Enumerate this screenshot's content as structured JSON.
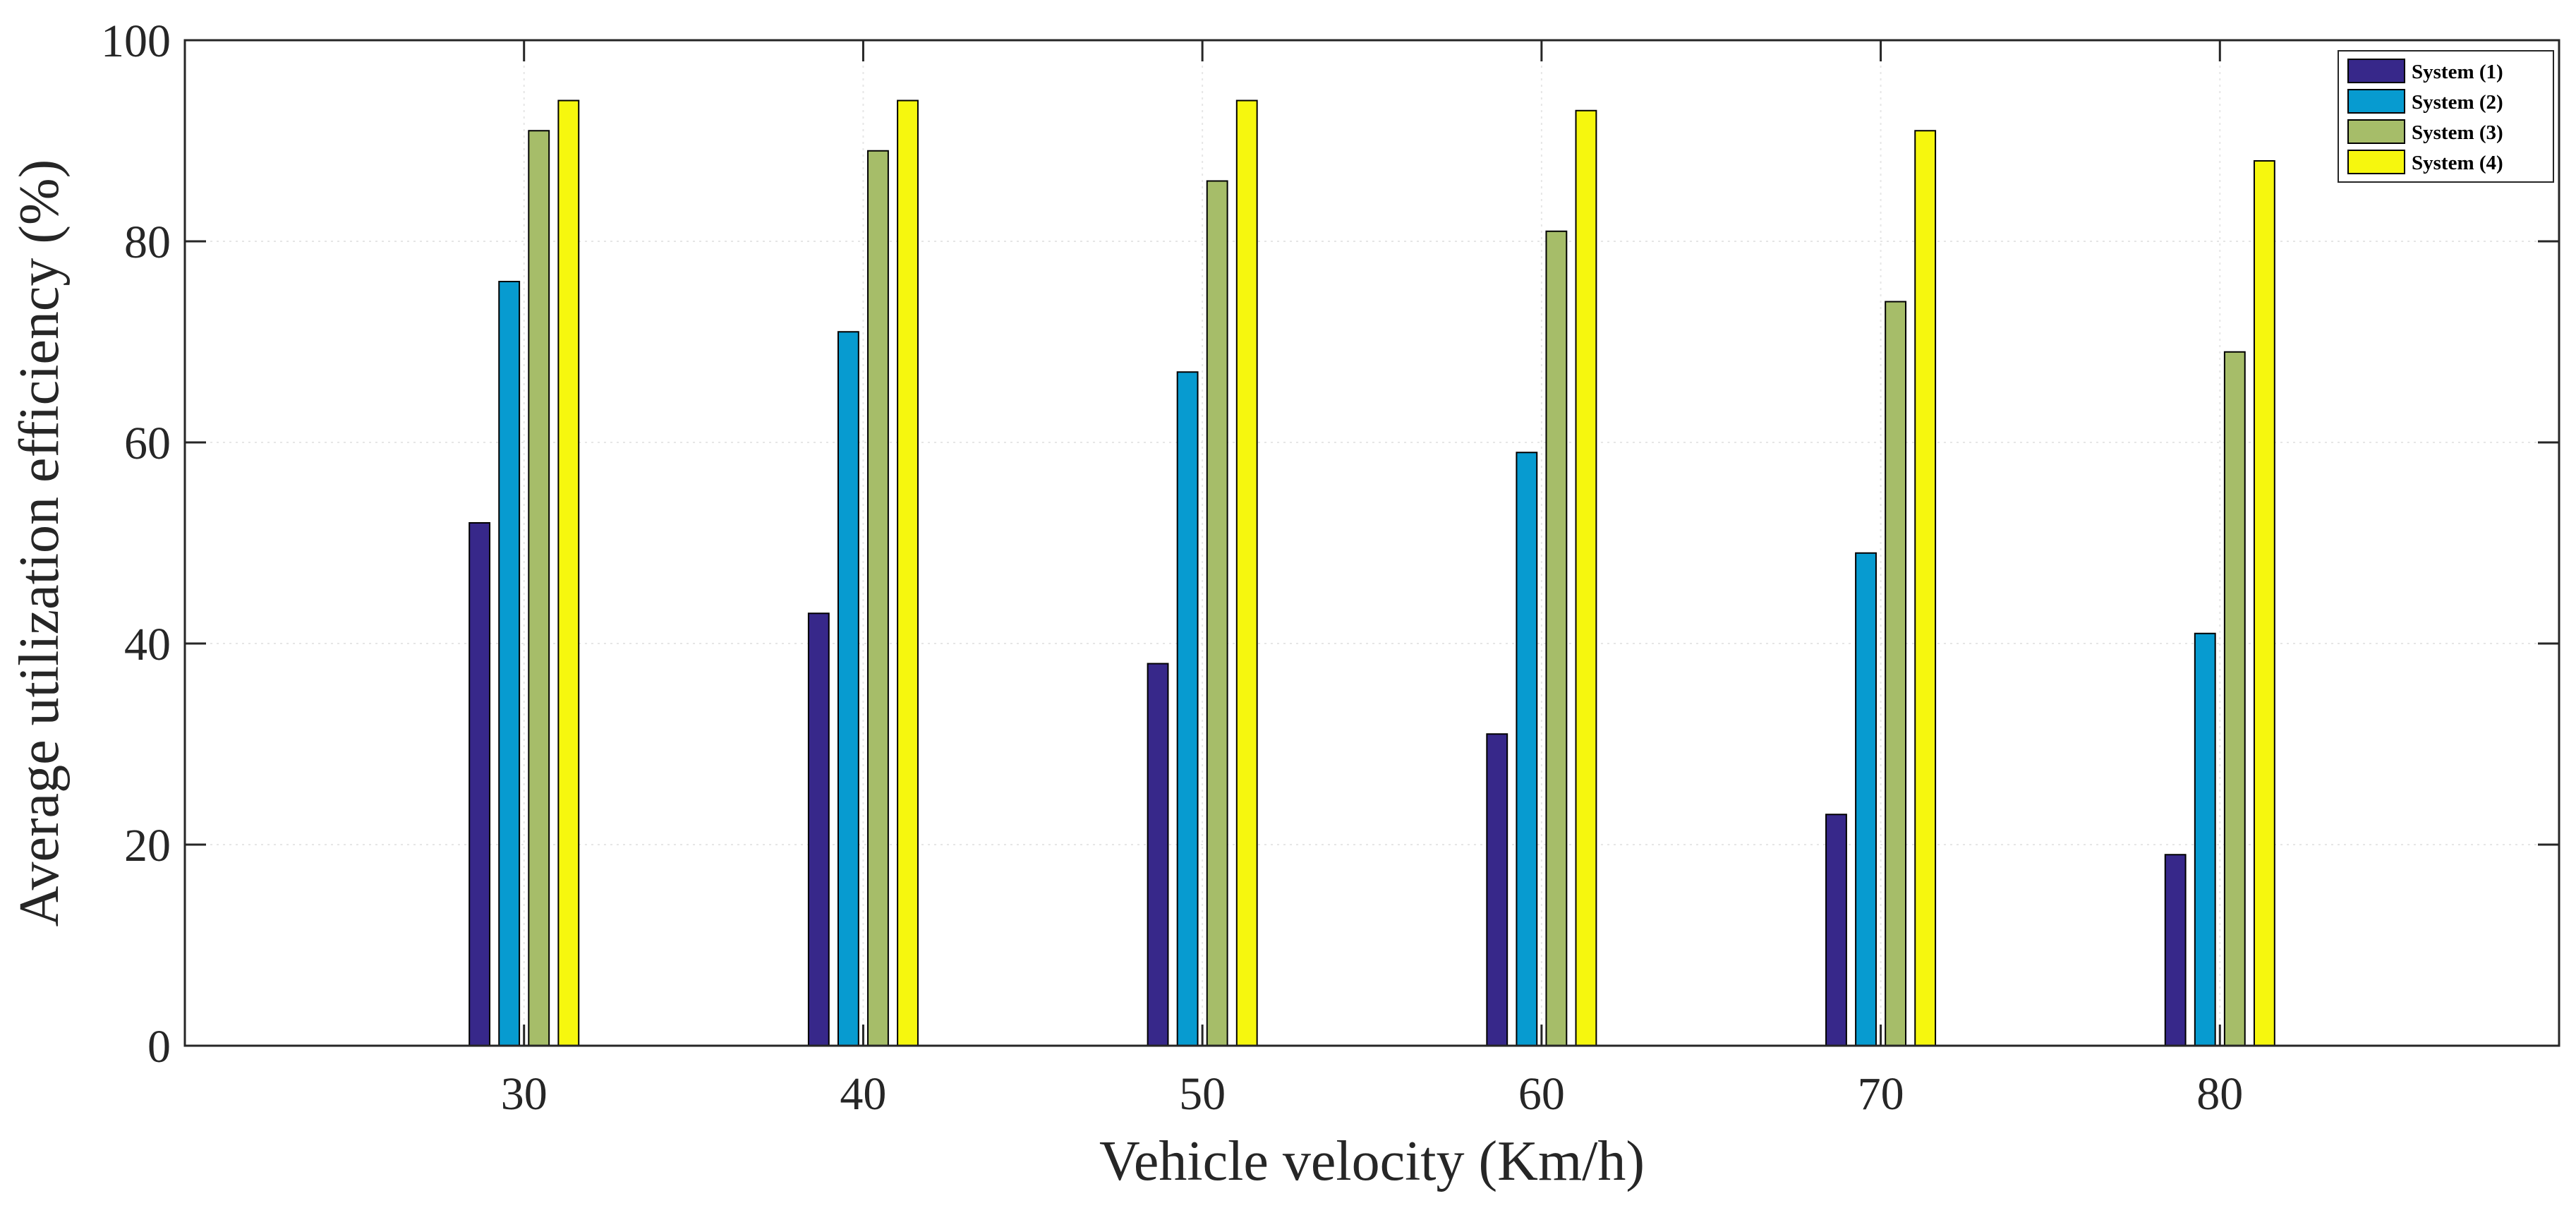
{
  "chart_data": {
    "type": "bar",
    "title": "",
    "xlabel": "Vehicle velocity (Km/h)",
    "ylabel": "Average utilization efficiency (%)",
    "categories": [
      "30",
      "40",
      "50",
      "60",
      "70",
      "80"
    ],
    "x_range": [
      20,
      90
    ],
    "ylim": [
      0,
      100
    ],
    "yticks": [
      "0",
      "20",
      "40",
      "60",
      "80",
      "100"
    ],
    "grid": true,
    "legend_position": "top-right",
    "series": [
      {
        "name": "System (1)",
        "color": "#37288a",
        "values": [
          52,
          43,
          38,
          31,
          23,
          19
        ]
      },
      {
        "name": "System (2)",
        "color": "#079bd0",
        "values": [
          76,
          71,
          67,
          59,
          49,
          41
        ]
      },
      {
        "name": "System (3)",
        "color": "#a6bd69",
        "values": [
          91,
          89,
          86,
          81,
          74,
          69
        ]
      },
      {
        "name": "System (4)",
        "color": "#f6f70e",
        "values": [
          94,
          94,
          94,
          93,
          91,
          88
        ]
      }
    ]
  }
}
